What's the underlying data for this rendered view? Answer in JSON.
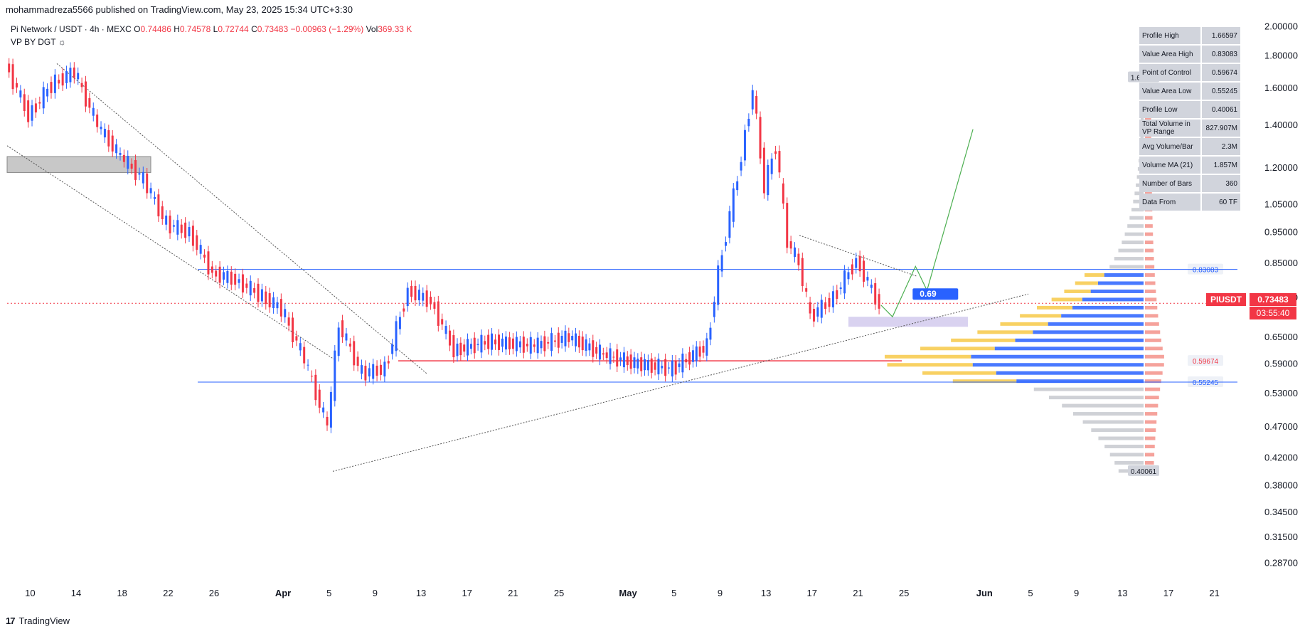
{
  "header": {
    "published": "mohammadreza5566 published on TradingView.com, May 23, 2025 15:34 UTC+3:30"
  },
  "legend": {
    "symbol": "Pi Network / USDT · 4h · MEXC",
    "o_label": "O",
    "o_val": "0.74486",
    "h_label": "H",
    "h_val": "0.74578",
    "l_label": "L",
    "l_val": "0.72744",
    "c_label": "C",
    "c_val": "0.73483",
    "change": "−0.00963 (−1.29%)",
    "vol_label": "Vol",
    "vol_val": "369.33 K"
  },
  "indicator": {
    "label": "VP BY DGT"
  },
  "stats": [
    {
      "key": "Profile High",
      "value": "1.66597"
    },
    {
      "key": "Value Area High",
      "value": "0.83083"
    },
    {
      "key": "Point of Control",
      "value": "0.59674"
    },
    {
      "key": "Value Area Low",
      "value": "0.55245"
    },
    {
      "key": "Profile Low",
      "value": "0.40061"
    },
    {
      "key": "Total Volume in VP Range",
      "value": "827.907M"
    },
    {
      "key": "Avg Volume/Bar",
      "value": "2.3M"
    },
    {
      "key": "Volume MA (21)",
      "value": "1.857M"
    },
    {
      "key": "Number of Bars",
      "value": "360"
    },
    {
      "key": "Data From",
      "value": "60 TF"
    }
  ],
  "price_tag": {
    "symbol": "PIUSDT",
    "price": "0.73483",
    "countdown": "03:55:40"
  },
  "footer": {
    "brand": "TradingView"
  },
  "colors": {
    "up": "#2962ff",
    "down": "#f23645",
    "poc": "#f23645",
    "value_area": "#2962ff",
    "volume_up": "#f7c948",
    "volume_down": "#f28b82",
    "projection": "#4caf50"
  },
  "chart_data": {
    "type": "candlestick",
    "price_scale": "log",
    "ylim": [
      0.27,
      2.05
    ],
    "y_ticks": [
      "2.00000",
      "1.80000",
      "1.60000",
      "1.40000",
      "1.20000",
      "1.05000",
      "0.95000",
      "0.85000",
      "0.75000",
      "0.65000",
      "0.59000",
      "0.53000",
      "0.47000",
      "0.42000",
      "0.38000",
      "0.34500",
      "0.31500",
      "0.28700"
    ],
    "x_ticks": [
      "10",
      "14",
      "18",
      "22",
      "26",
      "Apr",
      "5",
      "9",
      "13",
      "17",
      "21",
      "25",
      "May",
      "5",
      "9",
      "13",
      "17",
      "21",
      "25",
      "Jun",
      "5",
      "9",
      "13",
      "17",
      "21"
    ],
    "x_tick_dates": [
      "2025-03-10",
      "2025-03-14",
      "2025-03-18",
      "2025-03-22",
      "2025-03-26",
      "2025-04-01",
      "2025-04-05",
      "2025-04-09",
      "2025-04-13",
      "2025-04-17",
      "2025-04-21",
      "2025-04-25",
      "2025-05-01",
      "2025-05-05",
      "2025-05-09",
      "2025-05-13",
      "2025-05-17",
      "2025-05-21",
      "2025-05-25",
      "2025-06-01",
      "2025-06-05",
      "2025-06-09",
      "2025-06-13",
      "2025-06-17",
      "2025-06-21"
    ],
    "key_levels": {
      "value_area_high": 0.83083,
      "point_of_control": 0.59674,
      "value_area_low": 0.55245,
      "profile_high": 1.66597,
      "profile_low": 0.40061
    },
    "level_labels": [
      "0.83083",
      "0.59674",
      "0.55245",
      "1.66597",
      "0.40061"
    ],
    "price_path": [
      {
        "date": "2025-03-08",
        "price": 1.75
      },
      {
        "date": "2025-03-10",
        "price": 1.45
      },
      {
        "date": "2025-03-12",
        "price": 1.62
      },
      {
        "date": "2025-03-14",
        "price": 1.7
      },
      {
        "date": "2025-03-16",
        "price": 1.4
      },
      {
        "date": "2025-03-18",
        "price": 1.25
      },
      {
        "date": "2025-03-20",
        "price": 1.15
      },
      {
        "date": "2025-03-22",
        "price": 0.98
      },
      {
        "date": "2025-03-24",
        "price": 0.95
      },
      {
        "date": "2025-03-26",
        "price": 0.82
      },
      {
        "date": "2025-03-28",
        "price": 0.8
      },
      {
        "date": "2025-03-30",
        "price": 0.76
      },
      {
        "date": "2025-04-01",
        "price": 0.72
      },
      {
        "date": "2025-04-03",
        "price": 0.6
      },
      {
        "date": "2025-04-05",
        "price": 0.47
      },
      {
        "date": "2025-04-06",
        "price": 0.68
      },
      {
        "date": "2025-04-08",
        "price": 0.57
      },
      {
        "date": "2025-04-10",
        "price": 0.58
      },
      {
        "date": "2025-04-12",
        "price": 0.77
      },
      {
        "date": "2025-04-14",
        "price": 0.74
      },
      {
        "date": "2025-04-16",
        "price": 0.62
      },
      {
        "date": "2025-04-19",
        "price": 0.64
      },
      {
        "date": "2025-04-23",
        "price": 0.63
      },
      {
        "date": "2025-04-26",
        "price": 0.65
      },
      {
        "date": "2025-04-29",
        "price": 0.61
      },
      {
        "date": "2025-05-02",
        "price": 0.59
      },
      {
        "date": "2025-05-05",
        "price": 0.58
      },
      {
        "date": "2025-05-08",
        "price": 0.63
      },
      {
        "date": "2025-05-09",
        "price": 0.82
      },
      {
        "date": "2025-05-11",
        "price": 1.25
      },
      {
        "date": "2025-05-12",
        "price": 1.6
      },
      {
        "date": "2025-05-13",
        "price": 1.12
      },
      {
        "date": "2025-05-14",
        "price": 1.3
      },
      {
        "date": "2025-05-15",
        "price": 0.92
      },
      {
        "date": "2025-05-16",
        "price": 0.85
      },
      {
        "date": "2025-05-17",
        "price": 0.7
      },
      {
        "date": "2025-05-19",
        "price": 0.75
      },
      {
        "date": "2025-05-21",
        "price": 0.86
      },
      {
        "date": "2025-05-23",
        "price": 0.73
      }
    ],
    "projection": [
      {
        "date": "2025-05-23",
        "price": 0.73
      },
      {
        "date": "2025-05-24",
        "price": 0.7
      },
      {
        "date": "2025-05-26",
        "price": 0.84
      },
      {
        "date": "2025-05-27",
        "price": 0.77
      },
      {
        "date": "2025-05-31",
        "price": 1.38
      }
    ],
    "annotation": "0.69"
  }
}
